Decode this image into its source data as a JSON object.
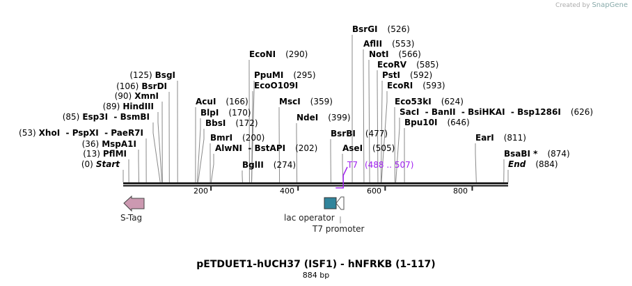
{
  "credit": {
    "prefix": "Created by",
    "brand": "SnapGene"
  },
  "title": "pETDUET1-hUCH37 (ISF1) - hNFRKB (1-117)",
  "length_label": "884 bp",
  "length_bp": 884,
  "ticks": [
    "200",
    "400",
    "600",
    "800"
  ],
  "enzymes": [
    {
      "name": "Start",
      "pos": "(0)",
      "cut": 0,
      "italic": true
    },
    {
      "name": "PflMI",
      "pos": "(13)",
      "cut": 13
    },
    {
      "name": "MspA1I",
      "pos": "(36)",
      "cut": 36
    },
    {
      "name": "XhoI  - PspXI  - PaeR7I",
      "pos": "(53)",
      "cut": 53
    },
    {
      "name": "Esp3I  - BsmBI",
      "pos": "(85)",
      "cut": 85
    },
    {
      "name": "HindIII",
      "pos": "(89)",
      "cut": 89
    },
    {
      "name": "XmnI",
      "pos": "(90)",
      "cut": 90
    },
    {
      "name": "BsrDI",
      "pos": "(106)",
      "cut": 106
    },
    {
      "name": "BsgI",
      "pos": "(125)",
      "cut": 125
    },
    {
      "name": "AcuI",
      "pos": "(166)",
      "cut": 166
    },
    {
      "name": "BlpI",
      "pos": "(170)",
      "cut": 170
    },
    {
      "name": "BbsI",
      "pos": "(172)",
      "cut": 172
    },
    {
      "name": "BmrI",
      "pos": "(200)",
      "cut": 200
    },
    {
      "name": "AlwNI  - BstAPI",
      "pos": "(202)",
      "cut": 202
    },
    {
      "name": "BglII",
      "pos": "(274)",
      "cut": 274
    },
    {
      "name": "EcoNI",
      "pos": "(290)",
      "cut": 290
    },
    {
      "name": "PpuMI",
      "pos": "(295)",
      "cut": 295
    },
    {
      "name": "EcoO109I",
      "pos": "",
      "cut": 295
    },
    {
      "name": "MscI",
      "pos": "(359)",
      "cut": 359
    },
    {
      "name": "NdeI",
      "pos": "(399)",
      "cut": 399
    },
    {
      "name": "BsrBI",
      "pos": "(477)",
      "cut": 477
    },
    {
      "name": "AseI",
      "pos": "(505)",
      "cut": 505
    },
    {
      "name": "BsrGI",
      "pos": "(526)",
      "cut": 526
    },
    {
      "name": "AflII",
      "pos": "(553)",
      "cut": 553
    },
    {
      "name": "NotI",
      "pos": "(566)",
      "cut": 566
    },
    {
      "name": "EcoRV",
      "pos": "(585)",
      "cut": 585
    },
    {
      "name": "PstI",
      "pos": "(592)",
      "cut": 592
    },
    {
      "name": "EcoRI",
      "pos": "(593)",
      "cut": 593
    },
    {
      "name": "Eco53kI",
      "pos": "(624)",
      "cut": 624
    },
    {
      "name": "SacI  - BanII  - BsiHKAI  - Bsp1286I",
      "pos": "(626)",
      "cut": 626
    },
    {
      "name": "Bpu10I",
      "pos": "(646)",
      "cut": 646
    },
    {
      "name": "EarI",
      "pos": "(811)",
      "cut": 811
    },
    {
      "name": "BsaBI *",
      "pos": "(874)",
      "cut": 874
    },
    {
      "name": "End",
      "pos": "(884)",
      "cut": 884,
      "italic": true
    }
  ],
  "t7_site": {
    "name": "T7",
    "range": "(488 .. 507)",
    "color": "#a020f0"
  },
  "features": [
    {
      "name": "S-Tag",
      "color": "#cc99b1"
    },
    {
      "name": "lac operator",
      "color": "#31849b"
    },
    {
      "name": "T7 promoter",
      "color": "#ffffff"
    }
  ]
}
